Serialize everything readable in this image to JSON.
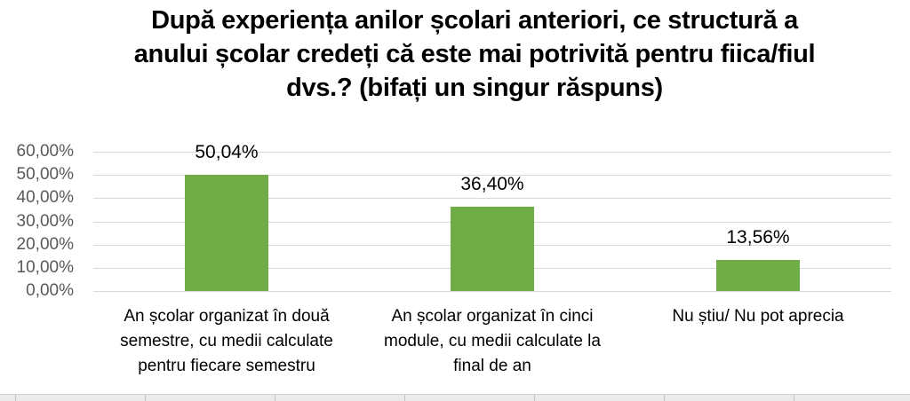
{
  "chart": {
    "title_lines": [
      "După experiența anilor școlari anteriori, ce structură a",
      "anului școlar credeți că este mai potrivită pentru fiica/fiul",
      "dvs.? (bifați un singur răspuns)"
    ]
  },
  "chart_data": {
    "type": "bar",
    "title": "După experiența anilor școlari anteriori, ce structură a anului școlar credeți că este mai potrivită pentru fiica/fiul dvs.? (bifați un singur răspuns)",
    "categories": [
      "An școlar organizat în două semestre, cu medii calculate pentru fiecare semestru",
      "An școlar organizat în cinci module, cu medii calculate la final de an",
      "Nu știu/ Nu pot aprecia"
    ],
    "values": [
      50.04,
      36.4,
      13.56
    ],
    "value_labels": [
      "50,04%",
      "36,40%",
      "13,56%"
    ],
    "xlabel": "",
    "ylabel": "",
    "y_axis": {
      "ticks": [
        "60,00%",
        "50,00%",
        "40,00%",
        "30,00%",
        "20,00%",
        "10,00%",
        "0,00%"
      ],
      "tick_values": [
        60,
        50,
        40,
        30,
        20,
        10,
        0
      ],
      "range": [
        0,
        60
      ]
    },
    "grid": true,
    "legend": false,
    "colors": {
      "bar": "#70AD47",
      "gridline": "#D8D8D8",
      "axis_text": "#595959",
      "label_text": "#000000",
      "title_text": "#000000"
    }
  }
}
